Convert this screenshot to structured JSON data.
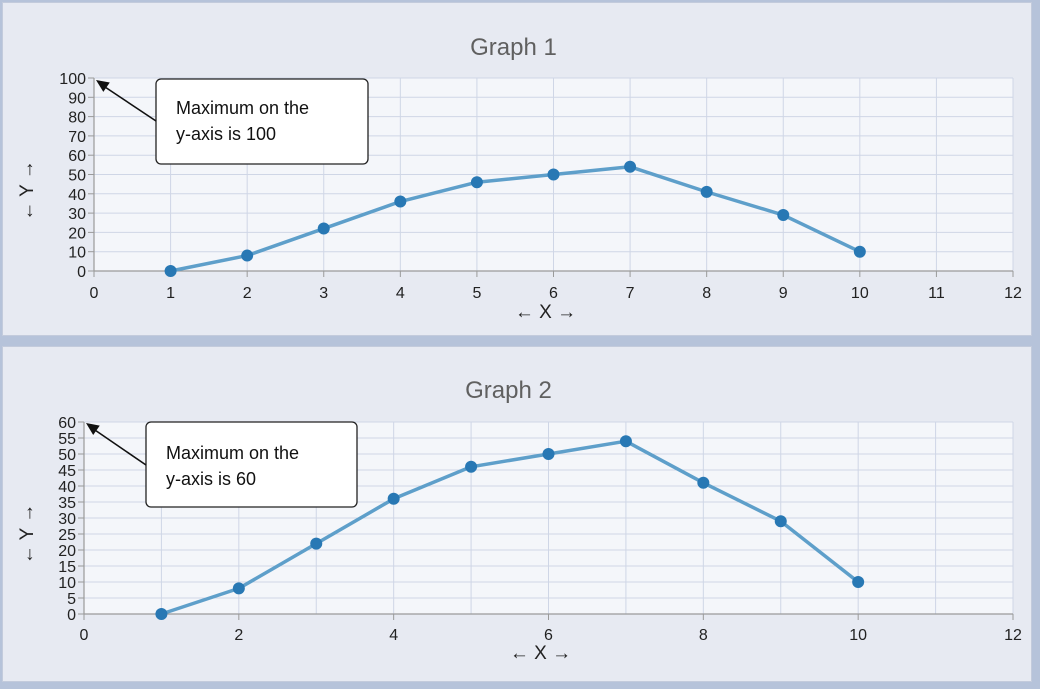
{
  "chart_data": [
    {
      "type": "line",
      "title": "Graph 1",
      "xlabel": "← X →",
      "ylabel": "← Y →",
      "xlim": [
        0,
        12
      ],
      "ylim": [
        0,
        100
      ],
      "x_ticks": [
        0,
        1,
        2,
        3,
        4,
        5,
        6,
        7,
        8,
        9,
        10,
        11,
        12
      ],
      "y_ticks": [
        0,
        10,
        20,
        30,
        40,
        50,
        60,
        70,
        80,
        90,
        100
      ],
      "grid": true,
      "series": [
        {
          "x": [
            1,
            2,
            3,
            4,
            5,
            6,
            7,
            8,
            9,
            10
          ],
          "y": [
            0,
            8,
            22,
            36,
            46,
            50,
            54,
            41,
            29,
            10
          ]
        }
      ],
      "annotation": {
        "lines": [
          "Maximum on the",
          "y-axis is 100"
        ]
      }
    },
    {
      "type": "line",
      "title": "Graph 2",
      "xlabel": "← X →",
      "ylabel": "← Y →",
      "xlim": [
        0,
        12
      ],
      "ylim": [
        0,
        60
      ],
      "x_ticks": [
        0,
        2,
        4,
        6,
        8,
        10,
        12
      ],
      "y_ticks": [
        0,
        5,
        10,
        15,
        20,
        25,
        30,
        35,
        40,
        45,
        50,
        55,
        60
      ],
      "grid": true,
      "series": [
        {
          "x": [
            1,
            2,
            3,
            4,
            5,
            6,
            7,
            8,
            9,
            10
          ],
          "y": [
            0,
            8,
            22,
            36,
            46,
            50,
            54,
            41,
            29,
            10
          ]
        }
      ],
      "annotation": {
        "lines": [
          "Maximum on the",
          "y-axis is 60"
        ]
      }
    }
  ],
  "colors": {
    "series_line": "#5e9fca",
    "series_point": "#2878b4",
    "grid": "#cfd6e6",
    "plot_bg": "#f4f6fa"
  }
}
